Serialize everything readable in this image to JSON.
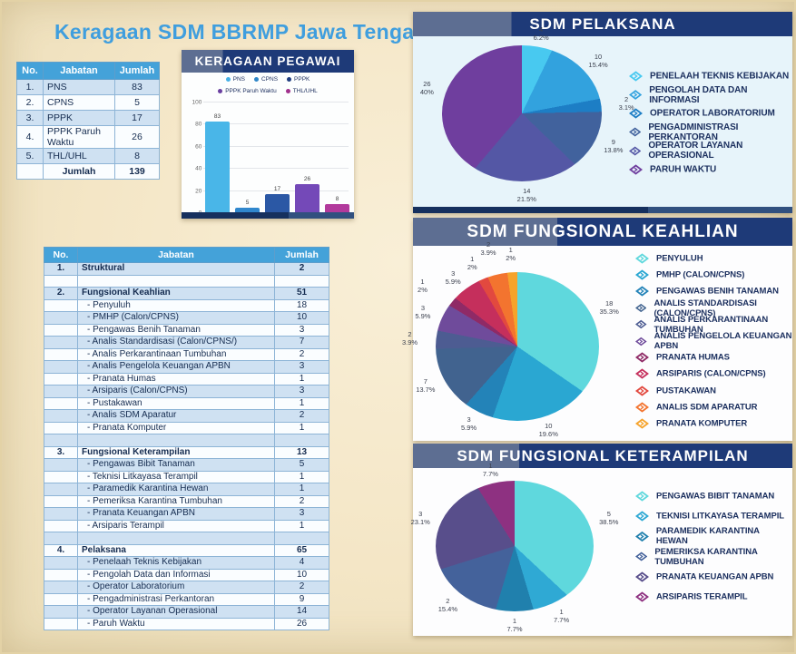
{
  "title": "Keragaan SDM BBRMP Jawa Tengah",
  "colors": {
    "page_bg": "#f4e6c6",
    "header_navy": "#1e3a78",
    "header_slate": "#5d6e92",
    "table_header_blue": "#44a2d9",
    "table_row_blue": "#cfe1f2",
    "table_row_white": "#fafdff",
    "title_blue": "#3f9ede",
    "text_navy": "#152c50"
  },
  "summary_table": {
    "headers": [
      "No.",
      "Jabatan",
      "Jumlah"
    ],
    "rows": [
      [
        "1.",
        "PNS",
        "83"
      ],
      [
        "2.",
        "CPNS",
        "5"
      ],
      [
        "3.",
        "PPPK",
        "17"
      ],
      [
        "4.",
        "PPPK Paruh Waktu",
        "26"
      ],
      [
        "5.",
        "THL/UHL",
        "8"
      ]
    ],
    "total": {
      "label": "Jumlah",
      "value": "139"
    }
  },
  "detail_table": {
    "headers": [
      "No.",
      "Jabatan",
      "Jumlah"
    ],
    "rows": [
      {
        "no": "1.",
        "jabatan": "Struktural",
        "jumlah": "2",
        "group": true
      },
      {
        "spacer": true
      },
      {
        "no": "2.",
        "jabatan": "Fungsional Keahlian",
        "jumlah": "51",
        "group": true
      },
      {
        "no": "",
        "jabatan": "- Penyuluh",
        "jumlah": "18"
      },
      {
        "no": "",
        "jabatan": "- PMHP (Calon/CPNS)",
        "jumlah": "10"
      },
      {
        "no": "",
        "jabatan": "- Pengawas Benih Tanaman",
        "jumlah": "3"
      },
      {
        "no": "",
        "jabatan": "- Analis Standardisasi (Calon/CPNS/)",
        "jumlah": "7"
      },
      {
        "no": "",
        "jabatan": "- Analis Perkarantinaan Tumbuhan",
        "jumlah": "2"
      },
      {
        "no": "",
        "jabatan": "- Analis Pengelola Keuangan APBN",
        "jumlah": "3"
      },
      {
        "no": "",
        "jabatan": "- Pranata Humas",
        "jumlah": "1"
      },
      {
        "no": "",
        "jabatan": "- Arsiparis (Calon/CPNS)",
        "jumlah": "3"
      },
      {
        "no": "",
        "jabatan": "- Pustakawan",
        "jumlah": "1"
      },
      {
        "no": "",
        "jabatan": "- Analis SDM Aparatur",
        "jumlah": "2"
      },
      {
        "no": "",
        "jabatan": "- Pranata Komputer",
        "jumlah": "1"
      },
      {
        "spacer": true
      },
      {
        "no": "3.",
        "jabatan": "Fungsional Keterampilan",
        "jumlah": "13",
        "group": true
      },
      {
        "no": "",
        "jabatan": "- Pengawas Bibit Tanaman",
        "jumlah": "5"
      },
      {
        "no": "",
        "jabatan": "- Teknisi Litkayasa Terampil",
        "jumlah": "1"
      },
      {
        "no": "",
        "jabatan": "- Paramedik Karantina Hewan",
        "jumlah": "1"
      },
      {
        "no": "",
        "jabatan": "- Pemeriksa Karantina Tumbuhan",
        "jumlah": "2"
      },
      {
        "no": "",
        "jabatan": "- Pranata Keuangan APBN",
        "jumlah": "3"
      },
      {
        "no": "",
        "jabatan": "- Arsiparis Terampil",
        "jumlah": "1"
      },
      {
        "spacer": true
      },
      {
        "no": "4.",
        "jabatan": "Pelaksana",
        "jumlah": "65",
        "group": true
      },
      {
        "no": "",
        "jabatan": "- Penelaah Teknis Kebijakan",
        "jumlah": "4"
      },
      {
        "no": "",
        "jabatan": "- Pengolah Data dan Informasi",
        "jumlah": "10"
      },
      {
        "no": "",
        "jabatan": "- Operator Laboratorium",
        "jumlah": "2"
      },
      {
        "no": "",
        "jabatan": "- Pengadministrasi Perkantoran",
        "jumlah": "9"
      },
      {
        "no": "",
        "jabatan": "- Operator Layanan Operasional",
        "jumlah": "14"
      },
      {
        "no": "",
        "jabatan": "- Paruh Waktu",
        "jumlah": "26"
      }
    ]
  },
  "chart_data": [
    {
      "type": "bar",
      "title": "KERAGAAN PEGAWAI",
      "categories": [
        "PNS",
        "CPNS",
        "PPPK",
        "PPPK Paruh Waktu",
        "THL/UHL"
      ],
      "values": [
        83,
        5,
        17,
        26,
        8
      ],
      "colors": [
        "#49b6e8",
        "#3087cd",
        "#2b58a5",
        "#7449b8",
        "#b23a9c"
      ],
      "legend_dot_colors": [
        "#45b0e6",
        "#2e86c8",
        "#1e3c80",
        "#6a3fa0",
        "#a1308c"
      ],
      "xlabel": "",
      "ylabel": "",
      "ylim": [
        0,
        100
      ],
      "yticks": [
        0,
        20,
        40,
        60,
        80,
        100
      ],
      "grid": true,
      "legend_position": "top"
    },
    {
      "type": "pie",
      "title": "SDM PELAKSANA",
      "labels": [
        "PENELAAH TEKNIS KEBIJAKAN",
        "PENGOLAH DATA DAN INFORMASI",
        "OPERATOR LABORATORIUM",
        "PENGADMINISTRASI PERKANTORAN",
        "OPERATOR LAYANAN OPERASIONAL",
        "PARUH WAKTU"
      ],
      "values": [
        4,
        10,
        2,
        9,
        14,
        26
      ],
      "pcts": [
        "6.2%",
        "15.4%",
        "3.1%",
        "13.8%",
        "21.5%",
        "40%"
      ],
      "colors": [
        "#48c9f0",
        "#32a2de",
        "#1d7ec5",
        "#41629d",
        "#5457a5",
        "#6f3e9e"
      ],
      "legend_position": "right",
      "start_angle_deg": 0,
      "direction": "clockwise"
    },
    {
      "type": "pie",
      "title": "SDM FUNGSIONAL KEAHLIAN",
      "labels": [
        "PENYULUH",
        "PMHP (CALON/CPNS)",
        "PENGAWAS BENIH TANAMAN",
        "ANALIS STANDARDISASI (CALON/CPNS)",
        "ANALIS PERKARANTINAAN TUMBUHAN",
        "ANALIS PENGELOLA KEUANGAN APBN",
        "PRANATA HUMAS",
        "ARSIPARIS (CALON/CPNS)",
        "PUSTAKAWAN",
        "ANALIS SDM APARATUR",
        "PRANATA KOMPUTER"
      ],
      "values": [
        18,
        10,
        3,
        7,
        2,
        3,
        1,
        3,
        1,
        2,
        1
      ],
      "pcts": [
        "35.3%",
        "19.6%",
        "5.9%",
        "13.7%",
        "3.9%",
        "5.9%",
        "2%",
        "5.9%",
        "2%",
        "3.9%",
        "2%"
      ],
      "colors": [
        "#5fd8dd",
        "#2aa7d2",
        "#2383b8",
        "#41638f",
        "#4d5c92",
        "#6f4b9b",
        "#8f2a66",
        "#c52f5c",
        "#e2493f",
        "#f3742f",
        "#f6a32b"
      ],
      "legend_position": "right",
      "start_angle_deg": 0,
      "direction": "clockwise"
    },
    {
      "type": "pie",
      "title": "SDM FUNGSIONAL KETERAMPILAN",
      "labels": [
        "PENGAWAS BIBIT TANAMAN",
        "TEKNISI LITKAYASA TERAMPIL",
        "PARAMEDIK KARANTINA HEWAN",
        "PEMERIKSA KARANTINA TUMBUHAN",
        "PRANATA KEUANGAN APBN",
        "ARSIPARIS TERAMPIL"
      ],
      "values": [
        5,
        1,
        1,
        2,
        3,
        1
      ],
      "pcts": [
        "38.5%",
        "7.7%",
        "7.7%",
        "15.4%",
        "23.1%",
        "7.7%"
      ],
      "colors": [
        "#5fd8dd",
        "#2fa9d4",
        "#2080ad",
        "#44629b",
        "#584e8b",
        "#8e3181"
      ],
      "legend_position": "right",
      "start_angle_deg": 0,
      "direction": "clockwise"
    }
  ]
}
